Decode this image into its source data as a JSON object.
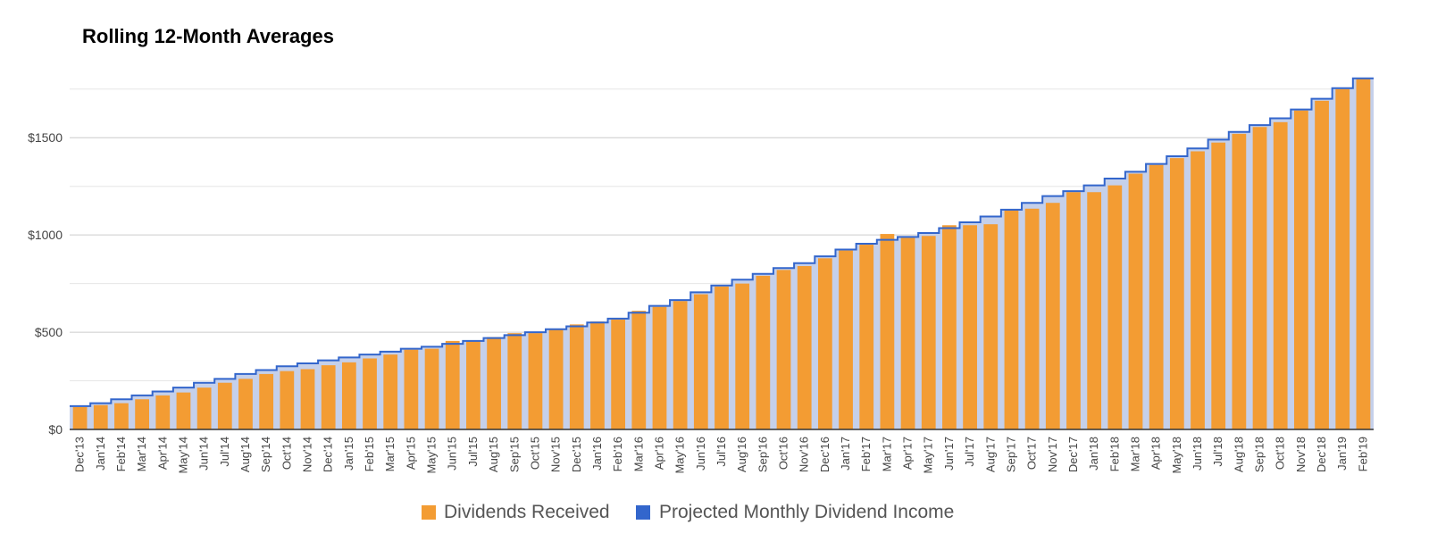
{
  "chart_data": {
    "type": "bar",
    "title": "Rolling 12-Month Averages",
    "xlabel": "",
    "ylabel": "",
    "ylim": [
      0,
      1850
    ],
    "yticks": [
      0,
      500,
      1000,
      1500
    ],
    "ytick_labels": [
      "$0",
      "$500",
      "$1000",
      "$1500"
    ],
    "grid": true,
    "legend_position": "bottom",
    "colors": {
      "bars": "#f39c33",
      "area_fill": "#c5d0ea",
      "line": "#3366cc",
      "grid": "#dddddd",
      "axis": "#333333"
    },
    "categories": [
      "Dec'13",
      "Jan'14",
      "Feb'14",
      "Mar'14",
      "Apr'14",
      "May'14",
      "Jun'14",
      "Jul'14",
      "Aug'14",
      "Sep'14",
      "Oct'14",
      "Nov'14",
      "Dec'14",
      "Jan'15",
      "Feb'15",
      "Mar'15",
      "Apr'15",
      "May'15",
      "Jun'15",
      "Jul'15",
      "Aug'15",
      "Sep'15",
      "Oct'15",
      "Nov'15",
      "Dec'15",
      "Jan'16",
      "Feb'16",
      "Mar'16",
      "Apr'16",
      "May'16",
      "Jun'16",
      "Jul'16",
      "Aug'16",
      "Sep'16",
      "Oct'16",
      "Nov'16",
      "Dec'16",
      "Jan'17",
      "Feb'17",
      "Mar'17",
      "Apr'17",
      "May'17",
      "Jun'17",
      "Jul'17",
      "Aug'17",
      "Sep'17",
      "Oct'17",
      "Nov'17",
      "Dec'17",
      "Jan'18",
      "Feb'18",
      "Mar'18",
      "Apr'18",
      "May'18",
      "Jun'18",
      "Jul'18",
      "Aug'18",
      "Sep'18",
      "Oct'18",
      "Nov'18",
      "Dec'18",
      "Jan'19",
      "Feb'19"
    ],
    "series": [
      {
        "name": "Dividends Received",
        "kind": "bar",
        "values": [
          115,
          125,
          135,
          155,
          175,
          190,
          215,
          240,
          260,
          285,
          300,
          310,
          330,
          345,
          365,
          385,
          410,
          415,
          455,
          455,
          475,
          495,
          495,
          515,
          540,
          555,
          565,
          610,
          630,
          660,
          695,
          735,
          750,
          790,
          820,
          840,
          880,
          920,
          950,
          1005,
          985,
          995,
          1050,
          1050,
          1055,
          1130,
          1135,
          1165,
          1220,
          1220,
          1255,
          1315,
          1360,
          1395,
          1430,
          1475,
          1520,
          1555,
          1580,
          1640,
          1690,
          1750,
          1805
        ]
      },
      {
        "name": "Projected Monthly Dividend Income",
        "kind": "area-step",
        "values": [
          120,
          135,
          155,
          175,
          195,
          215,
          240,
          260,
          285,
          305,
          325,
          340,
          355,
          370,
          385,
          400,
          415,
          425,
          440,
          455,
          470,
          485,
          500,
          515,
          530,
          550,
          570,
          600,
          635,
          665,
          705,
          740,
          770,
          800,
          830,
          855,
          890,
          925,
          955,
          975,
          990,
          1010,
          1035,
          1065,
          1095,
          1130,
          1165,
          1200,
          1225,
          1255,
          1290,
          1325,
          1365,
          1405,
          1445,
          1490,
          1530,
          1565,
          1600,
          1645,
          1700,
          1755,
          1805
        ]
      }
    ]
  }
}
